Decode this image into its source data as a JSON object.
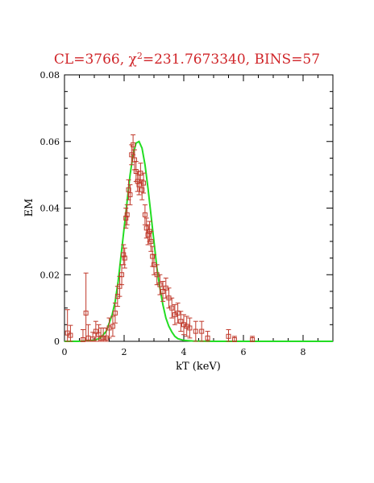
{
  "chart_data": {
    "type": "scatter",
    "title": {
      "prefix": "CL=3766, ",
      "chi_symbol": "χ",
      "chi_sup": "2",
      "suffix": "=231.7673340, BINS=57"
    },
    "xlabel": "kT (keV)",
    "ylabel": "EM",
    "xlim": [
      0,
      9
    ],
    "ylim": [
      0,
      0.08
    ],
    "xticks": [
      0,
      2,
      4,
      6,
      8
    ],
    "xtick_labels": [
      "0",
      "2",
      "4",
      "6",
      "8"
    ],
    "yticks": [
      0,
      0.02,
      0.04,
      0.06,
      0.08
    ],
    "ytick_labels": [
      "0",
      "0.02",
      "0.04",
      "0.06",
      "0.08"
    ],
    "grid": false,
    "colors": {
      "data": "#c0392b",
      "model": "#22dd22",
      "title": "#d0262a",
      "axes": "#000000"
    },
    "series": [
      {
        "style": "open-squares-with-error-bars",
        "x": [
          0.1,
          0.2,
          0.62,
          0.72,
          0.8,
          0.95,
          1.05,
          1.15,
          1.22,
          1.3,
          1.4,
          1.5,
          1.62,
          1.7,
          1.78,
          1.85,
          1.92,
          1.98,
          2.02,
          2.06,
          2.1,
          2.15,
          2.2,
          2.25,
          2.3,
          2.35,
          2.4,
          2.45,
          2.5,
          2.55,
          2.6,
          2.65,
          2.7,
          2.75,
          2.8,
          2.85,
          2.9,
          2.95,
          3.0,
          3.1,
          3.2,
          3.3,
          3.4,
          3.5,
          3.6,
          3.7,
          3.8,
          3.9,
          4.0,
          4.1,
          4.2,
          4.4,
          4.6,
          4.8,
          5.5,
          5.7,
          6.3
        ],
        "y": [
          0.0025,
          0.0018,
          0.0005,
          0.0085,
          0.001,
          0.0007,
          0.003,
          0.002,
          0.001,
          0.001,
          0.001,
          0.004,
          0.0045,
          0.0085,
          0.0135,
          0.0165,
          0.02,
          0.026,
          0.025,
          0.037,
          0.038,
          0.0455,
          0.044,
          0.056,
          0.059,
          0.0545,
          0.051,
          0.048,
          0.047,
          0.0505,
          0.0455,
          0.0475,
          0.038,
          0.034,
          0.032,
          0.033,
          0.03,
          0.0255,
          0.023,
          0.02,
          0.017,
          0.015,
          0.016,
          0.013,
          0.01,
          0.008,
          0.0085,
          0.006,
          0.005,
          0.0045,
          0.004,
          0.003,
          0.003,
          0.001,
          0.0015,
          0.0005,
          0.0005
        ],
        "yerr": [
          0.007,
          0.003,
          0.003,
          0.012,
          0.004,
          0.002,
          0.003,
          0.003,
          0.003,
          0.003,
          0.003,
          0.003,
          0.003,
          0.003,
          0.003,
          0.003,
          0.003,
          0.003,
          0.003,
          0.003,
          0.003,
          0.003,
          0.003,
          0.003,
          0.003,
          0.003,
          0.003,
          0.003,
          0.003,
          0.003,
          0.003,
          0.003,
          0.003,
          0.003,
          0.003,
          0.003,
          0.003,
          0.003,
          0.003,
          0.003,
          0.003,
          0.003,
          0.003,
          0.003,
          0.003,
          0.003,
          0.003,
          0.003,
          0.003,
          0.003,
          0.003,
          0.003,
          0.003,
          0.002,
          0.002,
          0.001,
          0.001
        ]
      },
      {
        "style": "line",
        "x": [
          0.0,
          0.5,
          1.0,
          1.2,
          1.4,
          1.6,
          1.7,
          1.8,
          1.9,
          2.0,
          2.1,
          2.2,
          2.3,
          2.4,
          2.5,
          2.6,
          2.7,
          2.8,
          2.9,
          3.0,
          3.1,
          3.2,
          3.3,
          3.4,
          3.5,
          3.6,
          3.7,
          3.8,
          4.0,
          4.3,
          5.0,
          9.0
        ],
        "y": [
          0.0,
          0.0,
          0.0003,
          0.001,
          0.003,
          0.008,
          0.012,
          0.018,
          0.026,
          0.034,
          0.042,
          0.05,
          0.056,
          0.0595,
          0.06,
          0.058,
          0.053,
          0.046,
          0.038,
          0.03,
          0.022,
          0.016,
          0.011,
          0.007,
          0.0045,
          0.0028,
          0.0015,
          0.0008,
          0.0003,
          0.0001,
          0.0,
          0.0
        ]
      }
    ]
  }
}
